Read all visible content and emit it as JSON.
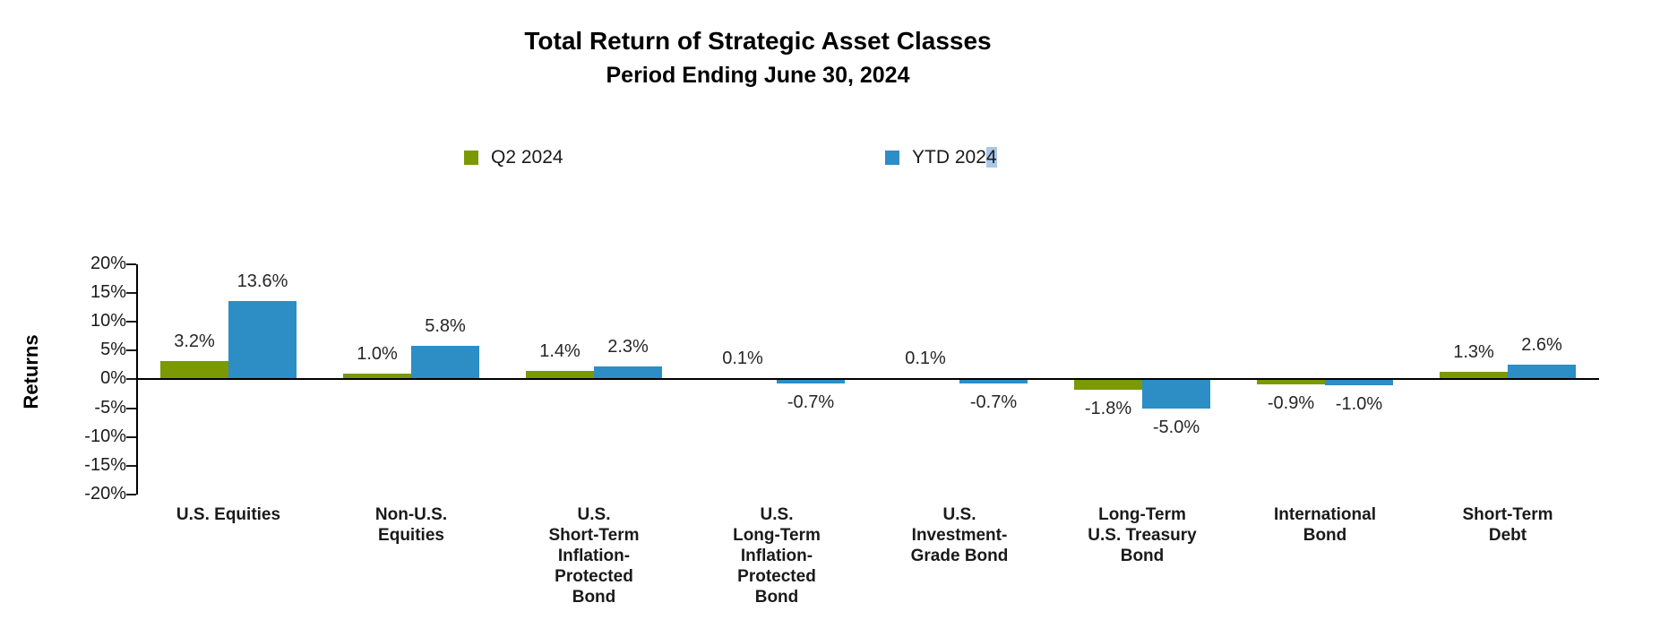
{
  "title": "Total Return of Strategic Asset Classes",
  "subtitle": "Period Ending June 30, 2024",
  "legend": {
    "q2": {
      "label": "Q2 2024",
      "color": "#7A9902"
    },
    "ytd": {
      "label_prefix": "YTD 202",
      "label_highlighted_char": "4",
      "color": "#2D8DC5",
      "selection_color": "#A9C7E8"
    }
  },
  "chart_data": {
    "type": "bar",
    "title": "Total Return of Strategic Asset Classes",
    "subtitle": "Period Ending June 30, 2024",
    "xlabel": "",
    "ylabel": "Returns",
    "ylim": [
      -20,
      20
    ],
    "ytick_step": 5,
    "ytick_suffix": "%",
    "grid": false,
    "legend_position": "top",
    "categories": [
      [
        "U.S. Equities"
      ],
      [
        "Non-U.S.",
        "Equities"
      ],
      [
        "U.S.",
        "Short-Term",
        "Inflation-",
        "Protected",
        "Bond"
      ],
      [
        "U.S.",
        "Long-Term",
        "Inflation-",
        "Protected",
        "Bond"
      ],
      [
        "U.S.",
        "Investment-",
        "Grade Bond"
      ],
      [
        "Long-Term",
        "U.S. Treasury",
        "Bond"
      ],
      [
        "International",
        "Bond"
      ],
      [
        "Short-Term",
        "Debt"
      ]
    ],
    "series": [
      {
        "name": "Q2 2024",
        "color": "#7A9902",
        "values": [
          3.2,
          1.0,
          1.4,
          0.1,
          0.1,
          -1.8,
          -0.9,
          1.3
        ]
      },
      {
        "name": "YTD 2024",
        "color": "#2D8DC5",
        "values": [
          13.6,
          5.8,
          2.3,
          -0.7,
          -0.7,
          -5.0,
          -1.0,
          2.6
        ]
      }
    ],
    "value_label_format": "one_decimal_percent"
  }
}
